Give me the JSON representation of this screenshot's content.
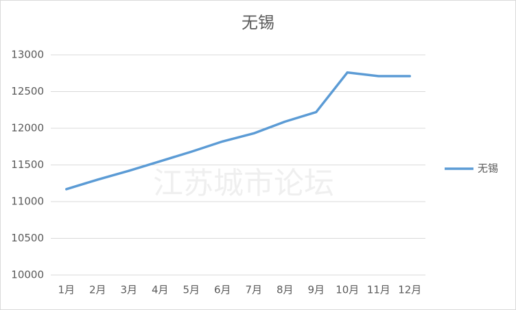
{
  "chart_data": {
    "type": "line",
    "title": "无锡",
    "watermark": "江苏城市论坛",
    "categories": [
      "1月",
      "2月",
      "3月",
      "4月",
      "5月",
      "6月",
      "7月",
      "8月",
      "9月",
      "10月",
      "11月",
      "12月"
    ],
    "series": [
      {
        "name": "无锡",
        "color": "#5b9bd5",
        "values": [
          11170,
          11300,
          11420,
          11550,
          11680,
          11820,
          11930,
          12090,
          12220,
          12760,
          12710,
          12710
        ]
      }
    ],
    "ylim": [
      10000,
      13000
    ],
    "yticks": [
      10000,
      10500,
      11000,
      11500,
      12000,
      12500,
      13000
    ],
    "grid": true,
    "legend": "right"
  }
}
